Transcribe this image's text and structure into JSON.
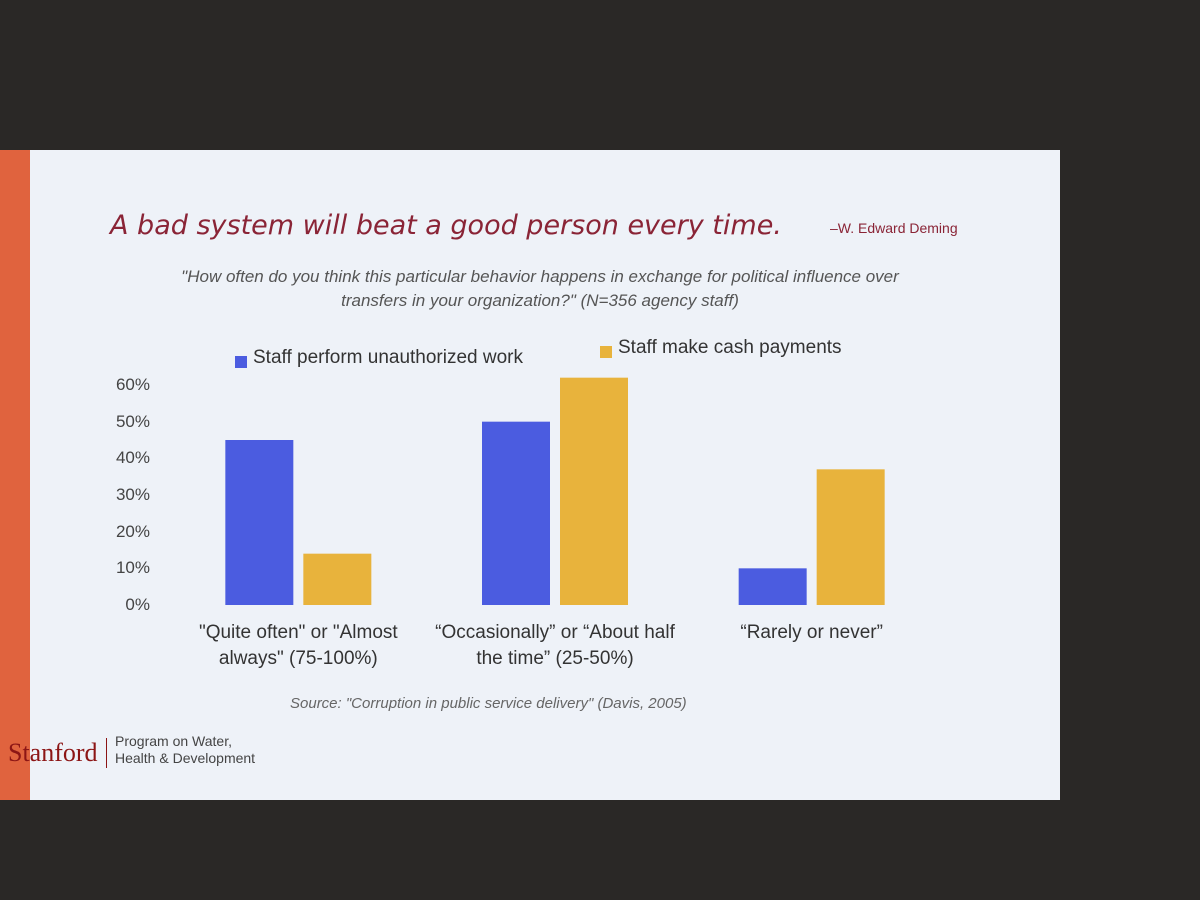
{
  "chart_data": {
    "type": "bar",
    "title": "A bad system will beat a good person every time.",
    "attribution": "–W. Edward Deming",
    "subtitle": "\"How often do you think this particular behavior happens in exchange for political influence over transfers in your organization?\"  (N=356 agency staff)",
    "categories": [
      "\"Quite often\" or \"Almost always\" (75-100%)",
      "“Occasionally” or “About half the time” (25-50%)",
      "“Rarely or never”"
    ],
    "series": [
      {
        "name": "Staff perform unauthorized work",
        "color": "#4b5ce0",
        "values": [
          45,
          50,
          10
        ]
      },
      {
        "name": "Staff make cash payments",
        "color": "#e8b33c",
        "values": [
          14,
          62,
          37
        ]
      }
    ],
    "ylim": [
      0,
      60
    ],
    "yticks": [
      {
        "value": 0,
        "label": "0%"
      },
      {
        "value": 10,
        "label": "10%"
      },
      {
        "value": 20,
        "label": "20%"
      },
      {
        "value": 30,
        "label": "30%"
      },
      {
        "value": 40,
        "label": "40%"
      },
      {
        "value": 50,
        "label": "50%"
      },
      {
        "value": 60,
        "label": "60%"
      }
    ],
    "grid": false,
    "source": "Source: \"Corruption in public service delivery\" (Davis, 2005)",
    "logo": "Stanford",
    "program": "Program on Water, Health & Development"
  }
}
